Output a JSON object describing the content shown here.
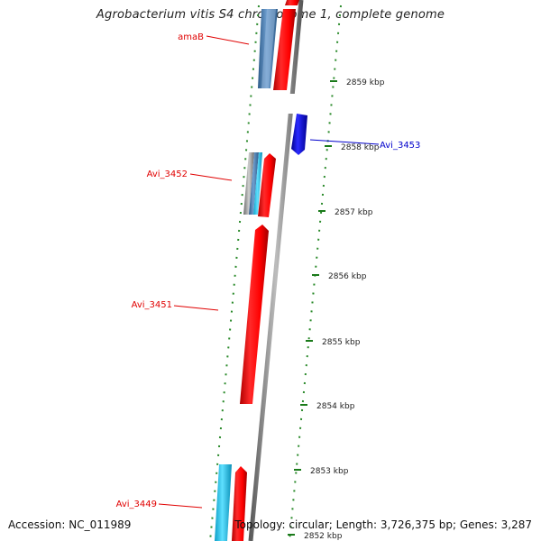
{
  "map": {
    "title": "Agrobacterium vitis S4 chromosome 1, complete genome",
    "accession": "Accession: NC_011989",
    "summary": "Topology: circular; Length: 3,726,375 bp; Genes: 3,287",
    "ticks": [
      {
        "label": "2859 kbp",
        "kbp": 2859
      },
      {
        "label": "2858 kbp",
        "kbp": 2858
      },
      {
        "label": "2857 kbp",
        "kbp": 2857
      },
      {
        "label": "2856 kbp",
        "kbp": 2856
      },
      {
        "label": "2855 kbp",
        "kbp": 2855
      },
      {
        "label": "2854 kbp",
        "kbp": 2854
      },
      {
        "label": "2853 kbp",
        "kbp": 2853
      },
      {
        "label": "2852 kbp",
        "kbp": 2852
      }
    ],
    "gene_labels": [
      {
        "name": "amaB",
        "color": "#e00000"
      },
      {
        "name": "Avi_3453",
        "color": "#0000cc"
      },
      {
        "name": "Avi_3452",
        "color": "#e00000"
      },
      {
        "name": "Avi_3451",
        "color": "#e00000"
      },
      {
        "name": "Avi_3449",
        "color": "#e00000"
      }
    ],
    "colors": {
      "forward_cds": "#ff0000",
      "reverse_cds": "#0000ee",
      "steelblue_track": "#4f81bd",
      "cyan_track": "#1ec8e6",
      "backbone": "#8a8a8a",
      "tick": "#1a7a1a",
      "dots": "#2a8a2a"
    }
  }
}
